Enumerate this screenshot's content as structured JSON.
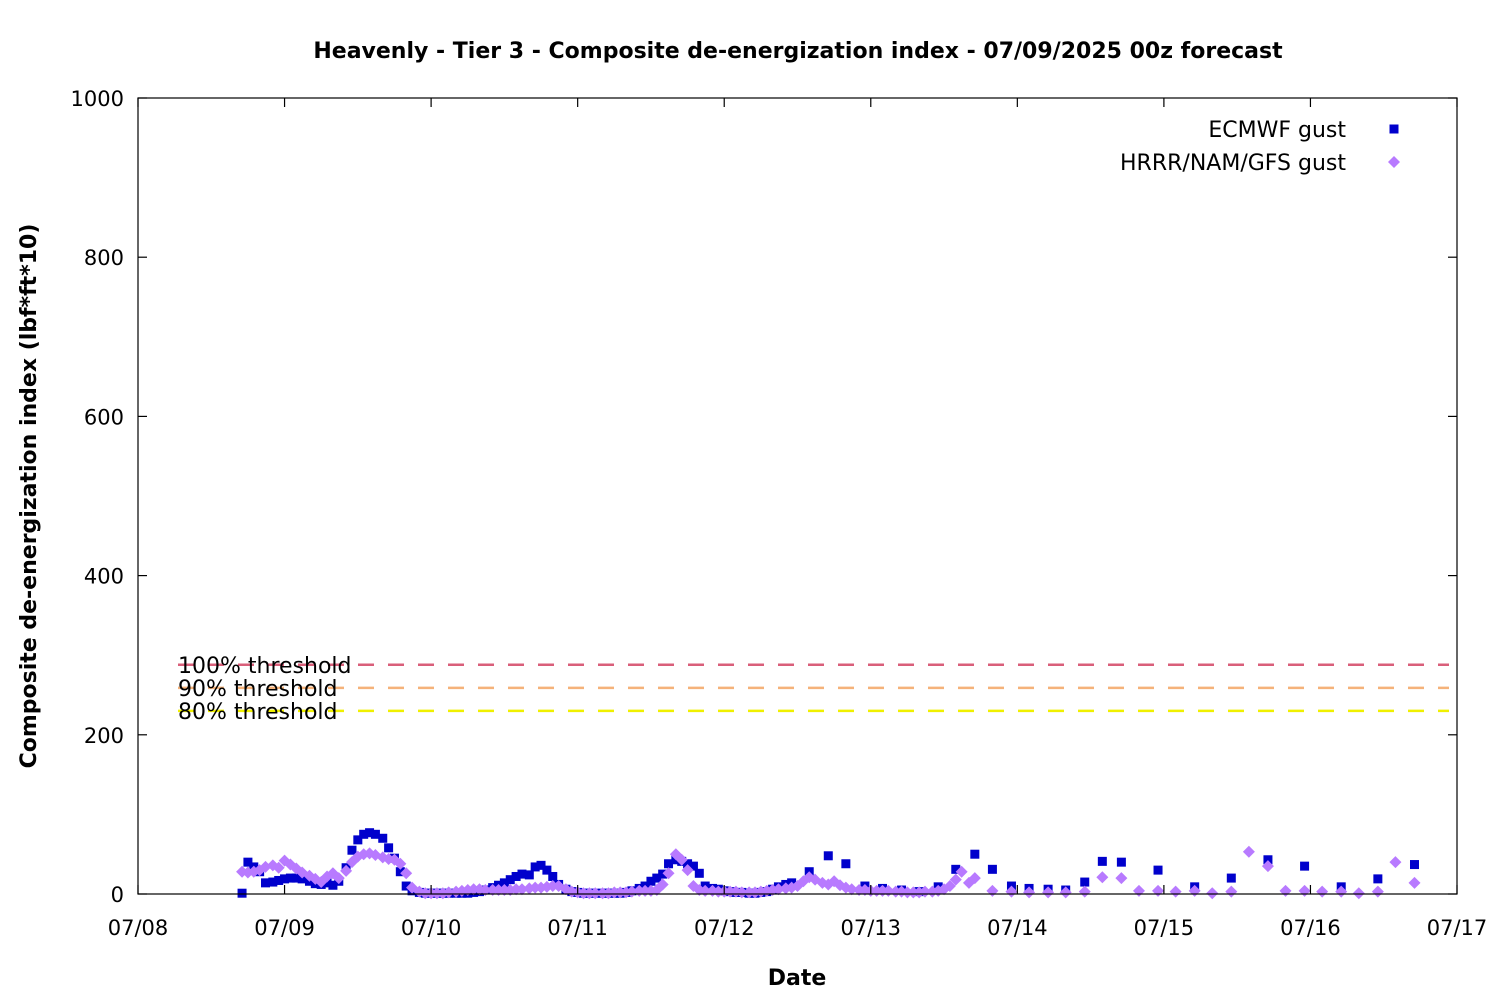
{
  "chart_data": {
    "type": "scatter",
    "title": "Heavenly - Tier 3 - Composite de-energization index - 07/09/2025 00z forecast",
    "xlabel": "Date",
    "ylabel": "Composite de-energization index (lbf*ft*10)",
    "x_unit": "days since 07/08 00z",
    "xlim": [
      0,
      9
    ],
    "ylim": [
      0,
      1000
    ],
    "x_ticks": [
      "07/08",
      "07/09",
      "07/10",
      "07/11",
      "07/12",
      "07/13",
      "07/14",
      "07/15",
      "07/16",
      "07/17"
    ],
    "y_ticks": [
      "0",
      "200",
      "400",
      "600",
      "800",
      "1000"
    ],
    "grid": false,
    "legend_position": "top-right",
    "thresholds": [
      {
        "label": "100% threshold",
        "value": 288,
        "color": "#d95f7a"
      },
      {
        "label": "90% threshold",
        "value": 259,
        "color": "#f5b27a"
      },
      {
        "label": "80% threshold",
        "value": 230,
        "color": "#f0f000"
      }
    ],
    "series": [
      {
        "name": "ECMWF gust",
        "marker": "square",
        "color": "#0000cc",
        "points": [
          [
            0.71,
            1
          ],
          [
            0.75,
            40
          ],
          [
            0.79,
            34
          ],
          [
            0.83,
            28
          ],
          [
            0.87,
            14
          ],
          [
            0.92,
            15
          ],
          [
            0.96,
            17
          ],
          [
            1.0,
            19
          ],
          [
            1.04,
            20
          ],
          [
            1.08,
            20
          ],
          [
            1.12,
            19
          ],
          [
            1.17,
            16
          ],
          [
            1.21,
            13
          ],
          [
            1.25,
            12
          ],
          [
            1.29,
            14
          ],
          [
            1.33,
            11
          ],
          [
            1.37,
            16
          ],
          [
            1.42,
            33
          ],
          [
            1.46,
            55
          ],
          [
            1.5,
            68
          ],
          [
            1.54,
            75
          ],
          [
            1.58,
            77
          ],
          [
            1.62,
            75
          ],
          [
            1.67,
            70
          ],
          [
            1.71,
            58
          ],
          [
            1.75,
            45
          ],
          [
            1.79,
            28
          ],
          [
            1.83,
            10
          ],
          [
            1.87,
            4
          ],
          [
            1.92,
            2
          ],
          [
            1.96,
            1
          ],
          [
            2.0,
            1
          ],
          [
            2.04,
            1
          ],
          [
            2.08,
            1
          ],
          [
            2.12,
            1
          ],
          [
            2.17,
            1
          ],
          [
            2.21,
            1
          ],
          [
            2.25,
            1
          ],
          [
            2.29,
            2
          ],
          [
            2.33,
            3
          ],
          [
            2.37,
            5
          ],
          [
            2.42,
            8
          ],
          [
            2.46,
            11
          ],
          [
            2.5,
            14
          ],
          [
            2.54,
            18
          ],
          [
            2.58,
            22
          ],
          [
            2.62,
            25
          ],
          [
            2.67,
            24
          ],
          [
            2.71,
            34
          ],
          [
            2.75,
            36
          ],
          [
            2.79,
            30
          ],
          [
            2.83,
            22
          ],
          [
            2.87,
            12
          ],
          [
            2.92,
            6
          ],
          [
            2.96,
            3
          ],
          [
            3.0,
            2
          ],
          [
            3.04,
            1
          ],
          [
            3.08,
            1
          ],
          [
            3.12,
            1
          ],
          [
            3.17,
            1
          ],
          [
            3.21,
            1
          ],
          [
            3.25,
            1
          ],
          [
            3.29,
            1
          ],
          [
            3.33,
            2
          ],
          [
            3.37,
            4
          ],
          [
            3.42,
            7
          ],
          [
            3.46,
            10
          ],
          [
            3.5,
            16
          ],
          [
            3.54,
            20
          ],
          [
            3.58,
            25
          ],
          [
            3.62,
            38
          ],
          [
            3.67,
            43
          ],
          [
            3.71,
            41
          ],
          [
            3.75,
            38
          ],
          [
            3.79,
            35
          ],
          [
            3.83,
            26
          ],
          [
            3.87,
            10
          ],
          [
            3.92,
            7
          ],
          [
            3.96,
            6
          ],
          [
            4.0,
            4
          ],
          [
            4.04,
            3
          ],
          [
            4.08,
            2
          ],
          [
            4.12,
            2
          ],
          [
            4.17,
            1
          ],
          [
            4.21,
            1
          ],
          [
            4.25,
            2
          ],
          [
            4.29,
            3
          ],
          [
            4.33,
            6
          ],
          [
            4.37,
            9
          ],
          [
            4.42,
            12
          ],
          [
            4.46,
            14
          ],
          [
            4.58,
            28
          ],
          [
            4.71,
            48
          ],
          [
            4.83,
            38
          ],
          [
            4.96,
            10
          ],
          [
            5.08,
            7
          ],
          [
            5.21,
            5
          ],
          [
            5.33,
            3
          ],
          [
            5.46,
            9
          ],
          [
            5.58,
            31
          ],
          [
            5.71,
            50
          ],
          [
            5.83,
            31
          ],
          [
            5.96,
            10
          ],
          [
            6.08,
            7
          ],
          [
            6.21,
            6
          ],
          [
            6.33,
            5
          ],
          [
            6.46,
            15
          ],
          [
            6.58,
            41
          ],
          [
            6.71,
            40
          ],
          [
            6.96,
            30
          ],
          [
            7.21,
            9
          ],
          [
            7.46,
            20
          ],
          [
            7.71,
            43
          ],
          [
            7.96,
            35
          ],
          [
            8.21,
            9
          ],
          [
            8.46,
            19
          ],
          [
            8.71,
            37
          ]
        ]
      },
      {
        "name": "HRRR/NAM/GFS gust",
        "marker": "diamond",
        "color": "#b87aff",
        "points": [
          [
            0.71,
            28
          ],
          [
            0.75,
            27
          ],
          [
            0.79,
            28
          ],
          [
            0.83,
            30
          ],
          [
            0.87,
            34
          ],
          [
            0.92,
            36
          ],
          [
            0.96,
            33
          ],
          [
            1.0,
            42
          ],
          [
            1.04,
            37
          ],
          [
            1.08,
            32
          ],
          [
            1.12,
            27
          ],
          [
            1.17,
            23
          ],
          [
            1.21,
            19
          ],
          [
            1.25,
            15
          ],
          [
            1.29,
            22
          ],
          [
            1.33,
            26
          ],
          [
            1.37,
            20
          ],
          [
            1.42,
            29
          ],
          [
            1.46,
            40
          ],
          [
            1.5,
            47
          ],
          [
            1.54,
            50
          ],
          [
            1.58,
            51
          ],
          [
            1.62,
            49
          ],
          [
            1.67,
            46
          ],
          [
            1.71,
            44
          ],
          [
            1.75,
            43
          ],
          [
            1.79,
            38
          ],
          [
            1.83,
            26
          ],
          [
            1.87,
            8
          ],
          [
            1.92,
            3
          ],
          [
            1.96,
            1
          ],
          [
            2.0,
            1
          ],
          [
            2.04,
            1
          ],
          [
            2.08,
            1
          ],
          [
            2.12,
            2
          ],
          [
            2.17,
            3
          ],
          [
            2.21,
            4
          ],
          [
            2.25,
            5
          ],
          [
            2.29,
            6
          ],
          [
            2.33,
            6
          ],
          [
            2.37,
            5
          ],
          [
            2.42,
            5
          ],
          [
            2.46,
            5
          ],
          [
            2.5,
            5
          ],
          [
            2.54,
            5
          ],
          [
            2.58,
            6
          ],
          [
            2.62,
            6
          ],
          [
            2.67,
            7
          ],
          [
            2.71,
            8
          ],
          [
            2.75,
            8
          ],
          [
            2.79,
            9
          ],
          [
            2.83,
            10
          ],
          [
            2.87,
            10
          ],
          [
            2.92,
            6
          ],
          [
            2.96,
            3
          ],
          [
            3.0,
            2
          ],
          [
            3.04,
            1
          ],
          [
            3.08,
            1
          ],
          [
            3.12,
            1
          ],
          [
            3.17,
            1
          ],
          [
            3.21,
            1
          ],
          [
            3.25,
            2
          ],
          [
            3.29,
            2
          ],
          [
            3.33,
            2
          ],
          [
            3.37,
            3
          ],
          [
            3.42,
            4
          ],
          [
            3.46,
            4
          ],
          [
            3.5,
            4
          ],
          [
            3.54,
            5
          ],
          [
            3.58,
            12
          ],
          [
            3.62,
            26
          ],
          [
            3.67,
            50
          ],
          [
            3.71,
            43
          ],
          [
            3.75,
            30
          ],
          [
            3.79,
            10
          ],
          [
            3.83,
            5
          ],
          [
            3.87,
            4
          ],
          [
            3.92,
            4
          ],
          [
            3.96,
            3
          ],
          [
            4.0,
            3
          ],
          [
            4.04,
            3
          ],
          [
            4.08,
            3
          ],
          [
            4.12,
            2
          ],
          [
            4.17,
            2
          ],
          [
            4.21,
            2
          ],
          [
            4.25,
            3
          ],
          [
            4.29,
            4
          ],
          [
            4.33,
            5
          ],
          [
            4.37,
            6
          ],
          [
            4.42,
            7
          ],
          [
            4.46,
            8
          ],
          [
            4.5,
            10
          ],
          [
            4.54,
            16
          ],
          [
            4.58,
            21
          ],
          [
            4.62,
            18
          ],
          [
            4.67,
            14
          ],
          [
            4.71,
            12
          ],
          [
            4.75,
            16
          ],
          [
            4.79,
            11
          ],
          [
            4.83,
            8
          ],
          [
            4.87,
            6
          ],
          [
            4.92,
            5
          ],
          [
            4.96,
            5
          ],
          [
            5.0,
            4
          ],
          [
            5.04,
            4
          ],
          [
            5.08,
            4
          ],
          [
            5.12,
            4
          ],
          [
            5.17,
            3
          ],
          [
            5.21,
            3
          ],
          [
            5.25,
            2
          ],
          [
            5.29,
            2
          ],
          [
            5.33,
            2
          ],
          [
            5.37,
            3
          ],
          [
            5.42,
            3
          ],
          [
            5.46,
            4
          ],
          [
            5.5,
            6
          ],
          [
            5.54,
            10
          ],
          [
            5.58,
            18
          ],
          [
            5.62,
            28
          ],
          [
            5.67,
            14
          ],
          [
            5.71,
            20
          ],
          [
            5.83,
            4
          ],
          [
            5.96,
            3
          ],
          [
            6.08,
            2
          ],
          [
            6.21,
            2
          ],
          [
            6.33,
            2
          ],
          [
            6.46,
            3
          ],
          [
            6.58,
            21
          ],
          [
            6.71,
            20
          ],
          [
            6.83,
            4
          ],
          [
            6.96,
            4
          ],
          [
            7.08,
            3
          ],
          [
            7.21,
            4
          ],
          [
            7.33,
            1
          ],
          [
            7.46,
            3
          ],
          [
            7.58,
            53
          ],
          [
            7.71,
            35
          ],
          [
            7.83,
            4
          ],
          [
            7.96,
            4
          ],
          [
            8.08,
            3
          ],
          [
            8.21,
            3
          ],
          [
            8.33,
            1
          ],
          [
            8.46,
            3
          ],
          [
            8.58,
            40
          ],
          [
            8.71,
            14
          ]
        ]
      }
    ]
  }
}
